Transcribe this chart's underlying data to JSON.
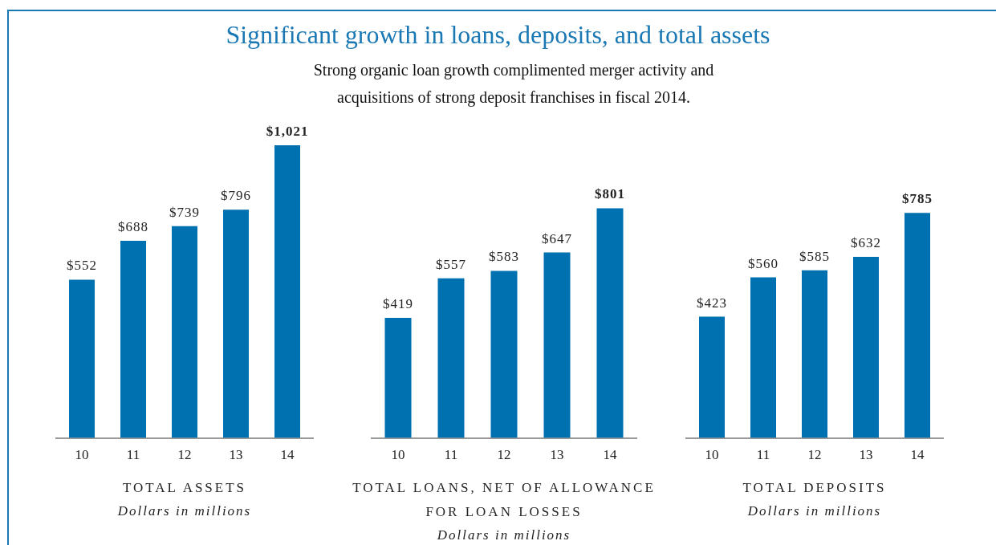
{
  "chart_data": [
    {
      "type": "bar",
      "title": "Significant growth in loans, deposits, and total assets",
      "subtitle": "Strong organic loan growth complimented merger activity and acquisitions of strong deposit franchises in fiscal 2014.",
      "xlabel": "TOTAL ASSETS",
      "annotations": [
        "Dollars in millions"
      ],
      "categories": [
        "10",
        "11",
        "12",
        "13",
        "14"
      ],
      "values": [
        552,
        688,
        739,
        796,
        1021
      ],
      "value_labels": [
        "$552",
        "$688",
        "$739",
        "$796",
        "$1,021"
      ],
      "color": "#0071b0",
      "grid": false,
      "legend": false,
      "tick_labels": "x"
    },
    {
      "type": "bar",
      "xlabel": "TOTAL LOANS, NET OF ALLOWANCE FOR LOAN LOSSES",
      "annotations": [
        "Dollars in millions"
      ],
      "categories": [
        "10",
        "11",
        "12",
        "13",
        "14"
      ],
      "values": [
        419,
        557,
        583,
        647,
        801
      ],
      "value_labels": [
        "$419",
        "$557",
        "$583",
        "$647",
        "$801"
      ],
      "color": "#0071b0",
      "grid": false,
      "legend": false,
      "tick_labels": "x"
    },
    {
      "type": "bar",
      "xlabel": "TOTAL DEPOSITS",
      "annotations": [
        "Dollars in millions"
      ],
      "categories": [
        "10",
        "11",
        "12",
        "13",
        "14"
      ],
      "values": [
        423,
        560,
        585,
        632,
        785
      ],
      "value_labels": [
        "$423",
        "$560",
        "$585",
        "$632",
        "$785"
      ],
      "color": "#0071b0",
      "grid": false,
      "legend": false,
      "tick_labels": "x"
    }
  ]
}
